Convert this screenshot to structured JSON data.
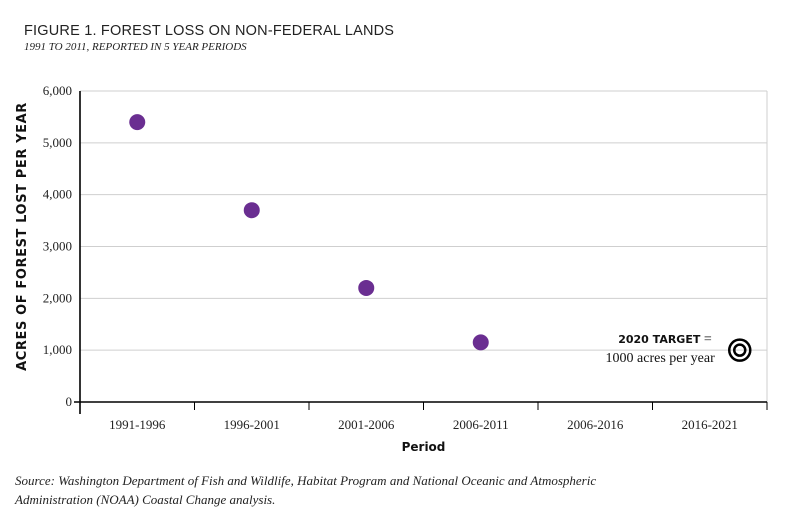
{
  "title": "FIGURE 1. FOREST LOSS ON NON-FEDERAL LANDS",
  "subtitle": "1991 TO 2011, REPORTED IN 5 YEAR PERIODS",
  "source": "Source: Washington Department of Fish and Wildlife, Habitat Program and National Oceanic and Atmospheric Administration (NOAA) Coastal Change analysis.",
  "chart_data": {
    "type": "scatter",
    "xlabel": "Period",
    "ylabel": "ACRES OF FOREST LOST PER YEAR",
    "categories": [
      "1991-1996",
      "1996-2001",
      "2001-2006",
      "2006-2011",
      "2006-2016",
      "2016-2021"
    ],
    "yticks": [
      0,
      1000,
      2000,
      3000,
      4000,
      5000,
      6000
    ],
    "ytick_labels": [
      "0",
      "1,000",
      "2,000",
      "3,000",
      "4,000",
      "5,000",
      "6,000"
    ],
    "ylim": [
      0,
      6000
    ],
    "grid": "horizontal",
    "points_color": "#6a2e91",
    "series": [
      {
        "x": [
          "1991-1996",
          "1996-2001",
          "2001-2006",
          "2006-2011"
        ],
        "values": [
          5400,
          3700,
          2200,
          1150
        ]
      }
    ],
    "target": {
      "label_bold": "2020 TARGET",
      "label_suffix": " =",
      "label_line2": "1000 acres per year",
      "value": 1000,
      "x": "2016-2021",
      "color": "#000000"
    }
  }
}
